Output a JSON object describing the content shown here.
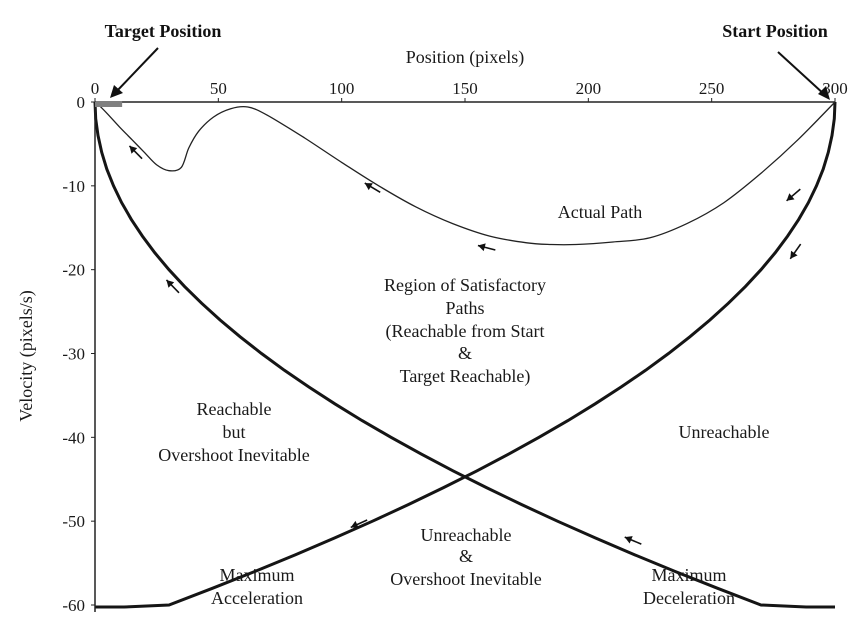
{
  "chart_data": {
    "type": "line",
    "xlabel": "Position (pixels)",
    "ylabel": "Velocity (pixels/s)",
    "xlim": [
      0,
      300
    ],
    "ylim": [
      -60,
      0
    ],
    "x_ticks": [
      0,
      50,
      100,
      150,
      200,
      250,
      300
    ],
    "y_ticks": [
      0,
      -10,
      -20,
      -30,
      -40,
      -50,
      -60
    ],
    "x_axis_position": "top",
    "grid": false,
    "series": [
      {
        "label": "Maximum Acceleration",
        "x": [
          0,
          0.3,
          1.2,
          2.7,
          4.8,
          7.5,
          10.8,
          14.7,
          19.2,
          24.3,
          30,
          36.3,
          43.2,
          50.7,
          58.8,
          67.5,
          76.8,
          86.7,
          97.2,
          108.3,
          120,
          132.3,
          145.2,
          158.7,
          172.8,
          187.5,
          202.8,
          218.7,
          235.2,
          252.3,
          270,
          288.3,
          300
        ],
        "y": [
          0,
          -2,
          -4,
          -6,
          -8,
          -10,
          -12,
          -14,
          -16,
          -18,
          -20,
          -22,
          -24,
          -26,
          -28,
          -30,
          -32,
          -34,
          -36,
          -38,
          -40,
          -42,
          -44,
          -46,
          -48,
          -50,
          -52,
          -54,
          -56,
          -58,
          -60,
          -62,
          -63.2
        ]
      },
      {
        "label": "Maximum Deceleration",
        "x": [
          300,
          299.7,
          298.8,
          297.3,
          295.2,
          292.5,
          289.2,
          285.3,
          280.8,
          275.7,
          270,
          263.7,
          256.8,
          249.3,
          241.2,
          232.5,
          223.2,
          213.3,
          202.8,
          191.7,
          180,
          167.7,
          154.8,
          141.3,
          127.2,
          112.5,
          97.2,
          81.3,
          64.8,
          47.7,
          30,
          11.7,
          0
        ],
        "y": [
          0,
          -2,
          -4,
          -6,
          -8,
          -10,
          -12,
          -14,
          -16,
          -18,
          -20,
          -22,
          -24,
          -26,
          -28,
          -30,
          -32,
          -34,
          -36,
          -38,
          -40,
          -42,
          -44,
          -46,
          -48,
          -50,
          -52,
          -54,
          -56,
          -58,
          -60,
          -62,
          -63.2
        ]
      },
      {
        "label": "Actual Path",
        "x": [
          300,
          285,
          270,
          255,
          240,
          225,
          210,
          195,
          185,
          175,
          160,
          145,
          130,
          115,
          100,
          85,
          70,
          62,
          55,
          48,
          42,
          38,
          35,
          30,
          25,
          20,
          15,
          10,
          5,
          2,
          0
        ],
        "y": [
          0,
          -4.5,
          -8.5,
          -12,
          -14.5,
          -16.2,
          -16.7,
          -17,
          -17,
          -16.8,
          -16,
          -14.5,
          -12.5,
          -10,
          -7.2,
          -4.3,
          -1.6,
          -0.6,
          -0.8,
          -1.8,
          -3.5,
          -5.5,
          -7.8,
          -8.2,
          -7.5,
          -6,
          -4.5,
          -3,
          -1.4,
          -0.5,
          0
        ]
      }
    ],
    "arrows_on_curves": [
      {
        "series": "Actual Path",
        "x": 280,
        "y": -10
      },
      {
        "series": "Actual Path",
        "x": 160,
        "y": -16
      },
      {
        "series": "Actual Path",
        "x": 115,
        "y": -9
      },
      {
        "series": "Actual Path",
        "x": 20,
        "y": -5
      },
      {
        "series": "Maximum Deceleration",
        "x": 280,
        "y": -17
      },
      {
        "series": "Maximum Deceleration",
        "x": 105,
        "y": -49
      },
      {
        "series": "Maximum Acceleration",
        "x": 35,
        "y": -21
      },
      {
        "series": "Maximum Acceleration",
        "x": 220,
        "y": -51
      }
    ],
    "target_marker": {
      "x_start": 0,
      "x_end": 11,
      "color": "#808080"
    },
    "annotations": {
      "target_position": "Target Position",
      "start_position": "Start Position",
      "actual_path": "Actual Path",
      "satisfactory_region": [
        "Region of Satisfactory",
        "Paths",
        "(Reachable from Start",
        "&",
        "Target Reachable)"
      ],
      "overshoot_region": [
        "Reachable",
        "but",
        "Overshoot Inevitable"
      ],
      "unreachable": "Unreachable",
      "unreachable_overshoot": [
        "Unreachable",
        "&",
        "Overshoot Inevitable"
      ],
      "max_acceleration": [
        "Maximum",
        "Acceleration"
      ],
      "max_deceleration": [
        "Maximum",
        "Deceleration"
      ]
    }
  }
}
